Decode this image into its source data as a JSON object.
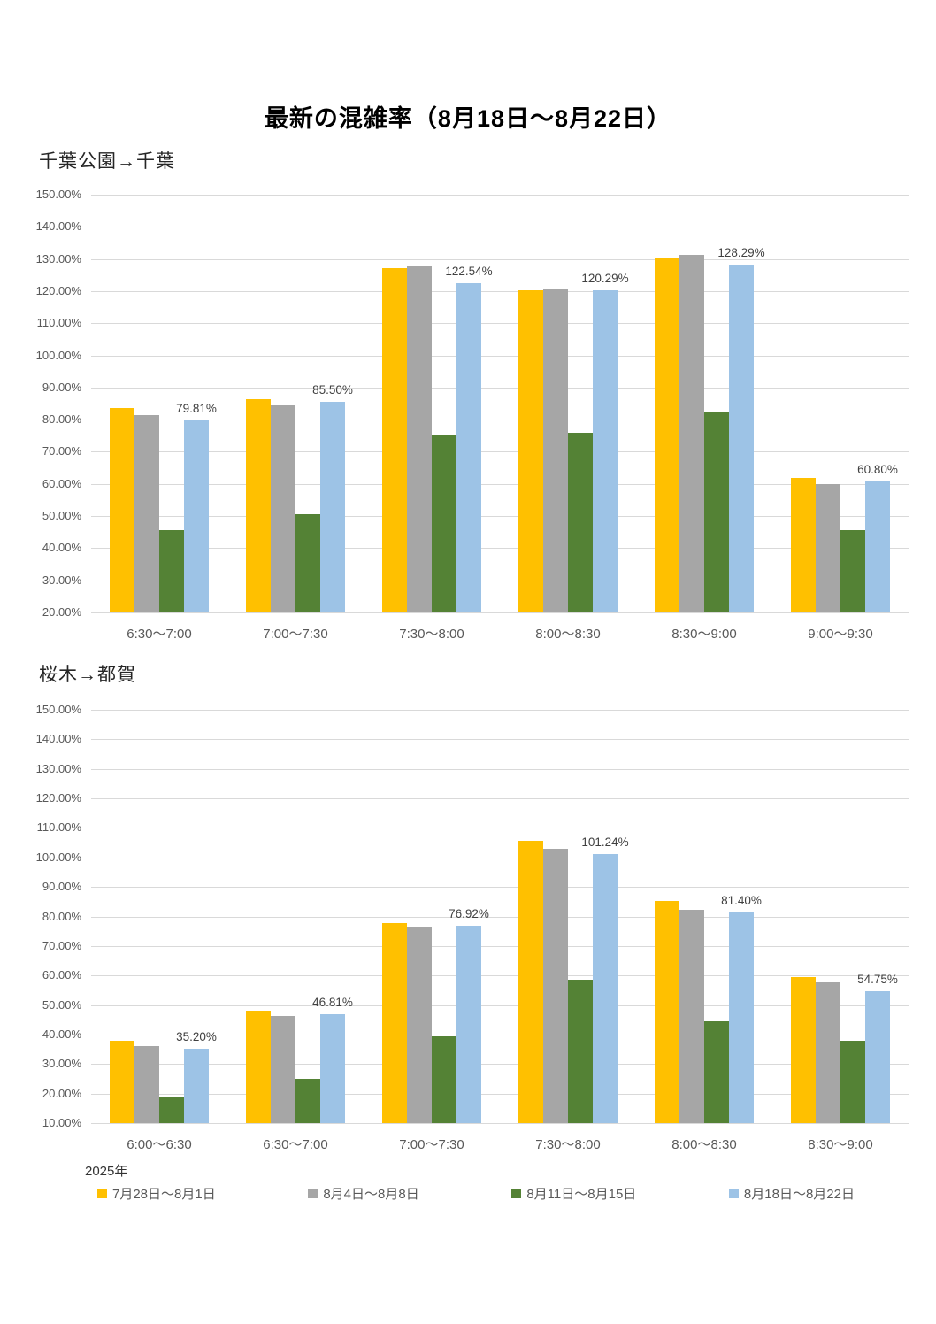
{
  "page": {
    "title": "最新の混雑率（8月18日～8月22日）",
    "year_label": "2025年"
  },
  "legend": [
    {
      "label": "7月28日～8月1日",
      "color": "#FFC000"
    },
    {
      "label": "8月4日～8月8日",
      "color": "#A6A6A6"
    },
    {
      "label": "8月11日～8月15日",
      "color": "#548235"
    },
    {
      "label": "8月18日～8月22日",
      "color": "#9DC3E6"
    }
  ],
  "chart_data": [
    {
      "type": "bar",
      "title": "千葉公園→千葉",
      "categories": [
        "6:30～7:00",
        "7:00～7:30",
        "7:30～8:00",
        "8:00～8:30",
        "8:30～9:00",
        "9:00～9:30"
      ],
      "series": [
        {
          "name": "7月28日～8月1日",
          "color": "#FFC000",
          "values": [
            83.5,
            86.4,
            127.2,
            120.4,
            130.3,
            61.9
          ]
        },
        {
          "name": "8月4日～8月8日",
          "color": "#A6A6A6",
          "values": [
            81.5,
            84.4,
            127.7,
            120.8,
            131.2,
            59.9
          ]
        },
        {
          "name": "8月11日～8月15日",
          "color": "#548235",
          "values": [
            45.5,
            50.6,
            75.2,
            75.8,
            82.2,
            45.6
          ]
        },
        {
          "name": "8月18日～8月22日",
          "color": "#9DC3E6",
          "values": [
            79.81,
            85.5,
            122.54,
            120.29,
            128.29,
            60.8
          ]
        }
      ],
      "data_label_series": 3,
      "data_labels": [
        "79.81%",
        "85.50%",
        "122.54%",
        "120.29%",
        "128.29%",
        "60.80%"
      ],
      "ylim": [
        20,
        150
      ],
      "ytick_step": 10,
      "ytick_format": "percent_2dp",
      "grid": true,
      "legend_position": "bottom"
    },
    {
      "type": "bar",
      "title": "桜木→都賀",
      "categories": [
        "6:00～6:30",
        "6:30～7:00",
        "7:00～7:30",
        "7:30～8:00",
        "8:00～8:30",
        "8:30～9:00"
      ],
      "series": [
        {
          "name": "7月28日～8月1日",
          "color": "#FFC000",
          "values": [
            37.8,
            48.2,
            77.9,
            105.7,
            85.2,
            59.4
          ]
        },
        {
          "name": "8月4日～8月8日",
          "color": "#A6A6A6",
          "values": [
            36.1,
            46.2,
            76.5,
            102.8,
            82.3,
            57.8
          ]
        },
        {
          "name": "8月11日～8月15日",
          "color": "#548235",
          "values": [
            18.8,
            25.0,
            39.3,
            58.5,
            44.4,
            37.9
          ]
        },
        {
          "name": "8月18日～8月22日",
          "color": "#9DC3E6",
          "values": [
            35.2,
            46.81,
            76.92,
            101.24,
            81.4,
            54.75
          ]
        }
      ],
      "data_label_series": 3,
      "data_labels": [
        "35.20%",
        "46.81%",
        "76.92%",
        "101.24%",
        "81.40%",
        "54.75%"
      ],
      "ylim": [
        10,
        150
      ],
      "ytick_step": 10,
      "ytick_format": "percent_2dp",
      "grid": true,
      "legend_position": "bottom"
    }
  ]
}
